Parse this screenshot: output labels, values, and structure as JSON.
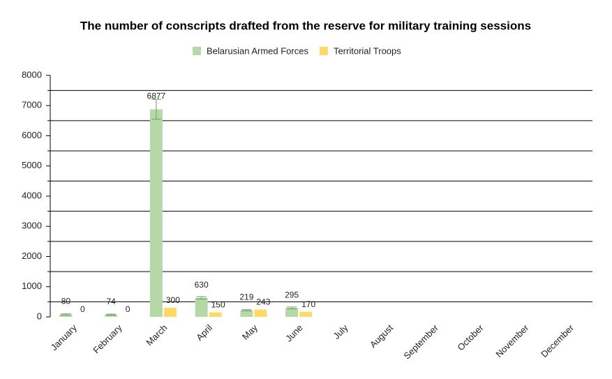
{
  "chart_data": {
    "type": "bar",
    "title": "The number of conscripts drafted from the reserve for military training sessions",
    "categories": [
      "January",
      "February",
      "March",
      "April",
      "May",
      "June",
      "July",
      "August",
      "September",
      "October",
      "November",
      "December"
    ],
    "series": [
      {
        "name": "Belarusian Armed Forces",
        "color": "#b6d7a8",
        "error_color": "#6e9a5e",
        "values": [
          80,
          74,
          6877,
          630,
          219,
          295,
          null,
          null,
          null,
          null,
          null,
          null
        ],
        "errors": [
          20,
          15,
          330,
          40,
          20,
          30,
          null,
          null,
          null,
          null,
          null,
          null
        ]
      },
      {
        "name": "Territorial Troops",
        "color": "#ffd966",
        "values": [
          0,
          0,
          300,
          150,
          243,
          170,
          null,
          null,
          null,
          null,
          null,
          null
        ]
      }
    ],
    "ylim": [
      0,
      8000
    ],
    "yticks": [
      0,
      1000,
      2000,
      3000,
      4000,
      5000,
      6000,
      7000,
      8000
    ],
    "grid_lines": [
      500,
      1500,
      2500,
      3500,
      4500,
      5500,
      6500,
      7500
    ],
    "grid": true,
    "legend": "top"
  }
}
